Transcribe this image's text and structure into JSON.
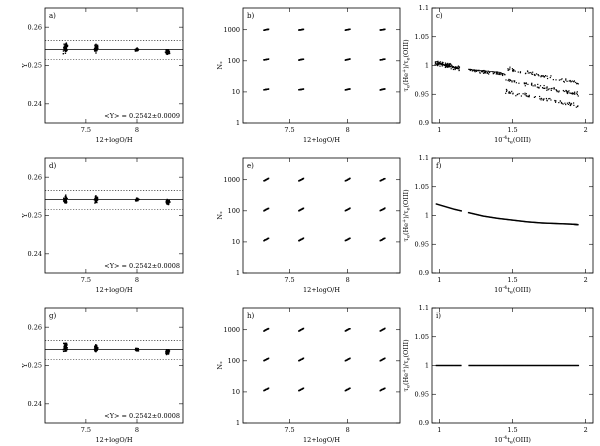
{
  "chart_data": [
    {
      "panel": "a",
      "type": "scatter",
      "kind": "Y",
      "panel_label": "a)",
      "xlabel": "12+logO/H",
      "ylabel": "Y",
      "xlim": [
        7.1,
        8.45
      ],
      "ylim": [
        0.235,
        0.265
      ],
      "xticks": [
        {
          "v": 7.5,
          "label": "7.5"
        },
        {
          "v": 8,
          "label": "8"
        }
      ],
      "yticks": [
        {
          "v": 0.24,
          "label": "0.24"
        },
        {
          "v": 0.25,
          "label": "0.25"
        },
        {
          "v": 0.26,
          "label": "0.26"
        }
      ],
      "ref_solid": 0.2542,
      "ref_dotted": [
        0.2515,
        0.2565
      ],
      "annotation": "<Y> = 0.2542±0.0009",
      "clusters": [
        {
          "x": 7.3,
          "y": 0.2545,
          "spread": 0.0011,
          "n": 60
        },
        {
          "x": 7.6,
          "y": 0.2545,
          "spread": 0.001,
          "n": 50
        },
        {
          "x": 8.0,
          "y": 0.2541,
          "spread": 0.0004,
          "n": 30
        },
        {
          "x": 8.3,
          "y": 0.2535,
          "spread": 0.0005,
          "n": 70
        }
      ]
    },
    {
      "panel": "b",
      "type": "scatter",
      "kind": "N",
      "panel_label": "b)",
      "xlabel": "12+logO/H",
      "ylabel": "N*",
      "xlim": [
        7.1,
        8.45
      ],
      "ylim": [
        1,
        5000
      ],
      "log_y": true,
      "xticks": [
        {
          "v": 7.5,
          "label": "7.5"
        },
        {
          "v": 8,
          "label": "8"
        }
      ],
      "yticks": [
        {
          "v": 1,
          "label": "1"
        },
        {
          "v": 10,
          "label": "10"
        },
        {
          "v": 100,
          "label": "100"
        },
        {
          "v": 1000,
          "label": "1000"
        }
      ],
      "xs": [
        7.3,
        7.6,
        8.0,
        8.3
      ],
      "ns": [
        12,
        110,
        1000
      ],
      "tilt": "slight"
    },
    {
      "panel": "c",
      "type": "scatter",
      "kind": "scatter",
      "panel_label": "c)",
      "xlabel": "10^-4 t_e(OIII)",
      "ylabel": "τ_e(He+)/τ_e(OIII)",
      "xlim": [
        0.95,
        2.05
      ],
      "ylim": [
        0.9,
        1.1
      ],
      "xticks": [
        {
          "v": 1,
          "label": "1"
        },
        {
          "v": 1.5,
          "label": "1.5"
        },
        {
          "v": 2,
          "label": "2"
        }
      ],
      "yticks": [
        {
          "v": 0.9,
          "label": "0.9"
        },
        {
          "v": 0.95,
          "label": "0.95"
        },
        {
          "v": 1,
          "label": "1"
        },
        {
          "v": 1.05,
          "label": "1.05"
        },
        {
          "v": 1.1,
          "label": "1.1"
        }
      ]
    },
    {
      "panel": "d",
      "type": "scatter",
      "kind": "Y",
      "panel_label": "d)",
      "xlabel": "12+logO/H",
      "ylabel": "Y",
      "xlim": [
        7.1,
        8.45
      ],
      "ylim": [
        0.235,
        0.265
      ],
      "xticks": [
        {
          "v": 7.5,
          "label": "7.5"
        },
        {
          "v": 8,
          "label": "8"
        }
      ],
      "yticks": [
        {
          "v": 0.24,
          "label": "0.24"
        },
        {
          "v": 0.25,
          "label": "0.25"
        },
        {
          "v": 0.26,
          "label": "0.26"
        }
      ],
      "ref_solid": 0.2542,
      "ref_dotted": [
        0.2515,
        0.2565
      ],
      "annotation": "<Y> = 0.2542±0.0008",
      "clusters": [
        {
          "x": 7.3,
          "y": 0.254,
          "spread": 0.001,
          "n": 55
        },
        {
          "x": 7.6,
          "y": 0.2542,
          "spread": 0.0009,
          "n": 50
        },
        {
          "x": 8.0,
          "y": 0.2541,
          "spread": 0.0004,
          "n": 30
        },
        {
          "x": 8.3,
          "y": 0.2535,
          "spread": 0.0005,
          "n": 65
        }
      ]
    },
    {
      "panel": "e",
      "type": "scatter",
      "kind": "N",
      "panel_label": "e)",
      "xlabel": "12+logO/H",
      "ylabel": "N*",
      "xlim": [
        7.1,
        8.45
      ],
      "ylim": [
        1,
        5000
      ],
      "log_y": true,
      "xticks": [
        {
          "v": 7.5,
          "label": "7.5"
        },
        {
          "v": 8,
          "label": "8"
        }
      ],
      "yticks": [
        {
          "v": 1,
          "label": "1"
        },
        {
          "v": 10,
          "label": "10"
        },
        {
          "v": 100,
          "label": "100"
        },
        {
          "v": 1000,
          "label": "1000"
        }
      ],
      "xs": [
        7.3,
        7.6,
        8.0,
        8.3
      ],
      "ns": [
        12,
        110,
        1000
      ],
      "tilt": "strong"
    },
    {
      "panel": "f",
      "type": "line",
      "kind": "curve",
      "panel_label": "f)",
      "xlabel": "10^-4 t_e(OIII)",
      "ylabel": "τ_e(He+)/τ_e(OIII)",
      "xlim": [
        0.95,
        2.05
      ],
      "ylim": [
        0.9,
        1.1
      ],
      "xticks": [
        {
          "v": 1,
          "label": "1"
        },
        {
          "v": 1.5,
          "label": "1.5"
        },
        {
          "v": 2,
          "label": "2"
        }
      ],
      "yticks": [
        {
          "v": 0.9,
          "label": "0.9"
        },
        {
          "v": 0.95,
          "label": "0.95"
        },
        {
          "v": 1,
          "label": "1"
        },
        {
          "v": 1.05,
          "label": "1.05"
        },
        {
          "v": 1.1,
          "label": "1.1"
        }
      ],
      "x": [
        0.98,
        1.1,
        1.2,
        1.3,
        1.4,
        1.5,
        1.6,
        1.7,
        1.8,
        1.9,
        1.95
      ],
      "y": [
        1.02,
        1.011,
        1.005,
        0.999,
        0.995,
        0.992,
        0.989,
        0.987,
        0.986,
        0.985,
        0.984
      ]
    },
    {
      "panel": "g",
      "type": "scatter",
      "kind": "Y",
      "panel_label": "g)",
      "xlabel": "12+logO/H",
      "ylabel": "Y",
      "xlim": [
        7.1,
        8.45
      ],
      "ylim": [
        0.235,
        0.265
      ],
      "xticks": [
        {
          "v": 7.5,
          "label": "7.5"
        },
        {
          "v": 8,
          "label": "8"
        }
      ],
      "yticks": [
        {
          "v": 0.24,
          "label": "0.24"
        },
        {
          "v": 0.25,
          "label": "0.25"
        },
        {
          "v": 0.26,
          "label": "0.26"
        }
      ],
      "ref_solid": 0.2542,
      "ref_dotted": [
        0.2515,
        0.2565
      ],
      "annotation": "<Y> = 0.2542±0.0008",
      "clusters": [
        {
          "x": 7.3,
          "y": 0.2548,
          "spread": 0.0011,
          "n": 55
        },
        {
          "x": 7.6,
          "y": 0.2544,
          "spread": 0.0009,
          "n": 50
        },
        {
          "x": 8.0,
          "y": 0.2541,
          "spread": 0.0004,
          "n": 30
        },
        {
          "x": 8.3,
          "y": 0.2535,
          "spread": 0.0005,
          "n": 65
        }
      ]
    },
    {
      "panel": "h",
      "type": "scatter",
      "kind": "N",
      "panel_label": "h)",
      "xlabel": "12+logO/H",
      "ylabel": "N*",
      "xlim": [
        7.1,
        8.45
      ],
      "ylim": [
        1,
        5000
      ],
      "log_y": true,
      "xticks": [
        {
          "v": 7.5,
          "label": "7.5"
        },
        {
          "v": 8,
          "label": "8"
        }
      ],
      "yticks": [
        {
          "v": 1,
          "label": "1"
        },
        {
          "v": 10,
          "label": "10"
        },
        {
          "v": 100,
          "label": "100"
        },
        {
          "v": 1000,
          "label": "1000"
        }
      ],
      "xs": [
        7.3,
        7.6,
        8.0,
        8.3
      ],
      "ns": [
        12,
        110,
        1000
      ],
      "tilt": "strong"
    },
    {
      "panel": "i",
      "type": "line",
      "kind": "flat",
      "panel_label": "i)",
      "xlabel": "10^-4 t_e(OIII)",
      "ylabel": "τ_e(He+)/τ_e(OIII)",
      "xlim": [
        0.95,
        2.05
      ],
      "ylim": [
        0.9,
        1.1
      ],
      "xticks": [
        {
          "v": 1,
          "label": "1"
        },
        {
          "v": 1.5,
          "label": "1.5"
        },
        {
          "v": 2,
          "label": "2"
        }
      ],
      "yticks": [
        {
          "v": 0.9,
          "label": "0.9"
        },
        {
          "v": 0.95,
          "label": "0.95"
        },
        {
          "v": 1,
          "label": "1"
        },
        {
          "v": 1.05,
          "label": "1.05"
        },
        {
          "v": 1.1,
          "label": "1.1"
        }
      ],
      "x": [
        0.98,
        1.95
      ],
      "y": [
        1.0,
        1.0
      ]
    }
  ]
}
